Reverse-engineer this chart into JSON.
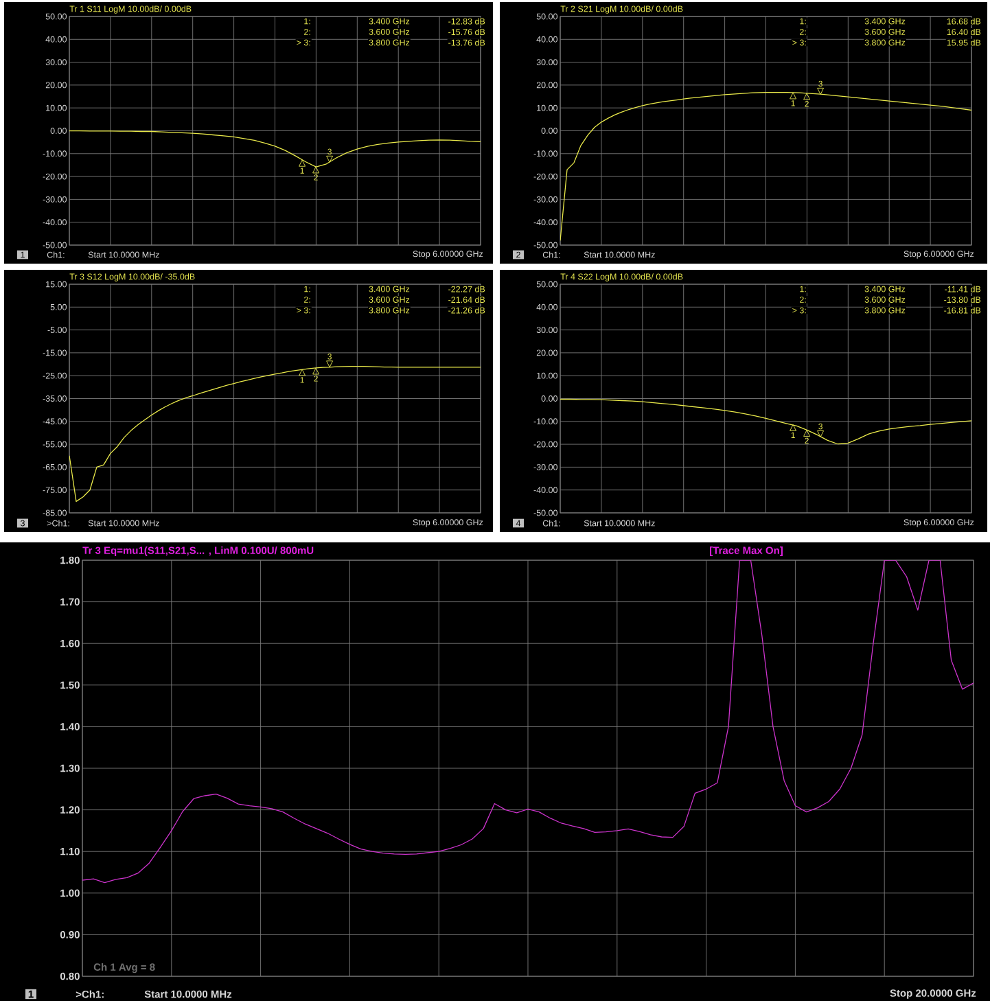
{
  "chart_data": [
    {
      "type": "line",
      "title": "Tr 1  S11 LogM 10.00dB/ 0.00dB",
      "categories": [
        null,
        null,
        null,
        null,
        null,
        null,
        null,
        null,
        null,
        null,
        null,
        null,
        null,
        null,
        null,
        null,
        null,
        null,
        null,
        null,
        null,
        null,
        null,
        null,
        null,
        null,
        null,
        null,
        null,
        null,
        null,
        null,
        null,
        null,
        null,
        null,
        null,
        null,
        null,
        null,
        null
      ],
      "series": [
        {
          "color": "#e8e84a",
          "values": [
            0,
            0,
            -0.1,
            -0.1,
            -0.1,
            -0.2,
            -0.2,
            -0.3,
            -0.3,
            -0.5,
            -0.7,
            -0.9,
            -1.1,
            -1.4,
            -1.8,
            -2.2,
            -2.7,
            -3.4,
            -4.2,
            -5.4,
            -6.7,
            -8.6,
            -11,
            -13.6,
            -15.8,
            -14.5,
            -11.8,
            -9.6,
            -8,
            -6.8,
            -6,
            -5.4,
            -4.9,
            -4.6,
            -4.3,
            -4.1,
            -4.0,
            -4.1,
            -4.3,
            -4.6,
            -4.8
          ]
        }
      ],
      "ylim": [
        -50,
        50
      ],
      "yticks": [
        {
          "value": 50,
          "label": "50.00"
        },
        {
          "value": 40,
          "label": "40.00"
        },
        {
          "value": 30,
          "label": "30.00"
        },
        {
          "value": 20,
          "label": "20.00"
        },
        {
          "value": 10,
          "label": "10.00"
        },
        {
          "value": 0,
          "label": "0.00"
        },
        {
          "value": -10,
          "label": "-10.00"
        },
        {
          "value": -20,
          "label": "-20.00"
        },
        {
          "value": -30,
          "label": "-30.00"
        },
        {
          "value": -40,
          "label": "-40.00"
        },
        {
          "value": -50,
          "label": "-50.00"
        }
      ],
      "grid": true,
      "tick_labels": "y",
      "annotations": [
        "1",
        "Ch1:",
        "Start 10.0000 MHz",
        "Stop 6.00000 GHz",
        "1:",
        "3.400 GHz",
        "-12.83 dB",
        "2:",
        "3.600 GHz",
        "-15.76 dB",
        "> 3:",
        "3.800 GHz",
        "-13.76 dB",
        {
          "text": "1",
          "y": -12.83
        },
        {
          "text": "2",
          "y": -15.76
        },
        {
          "text": "3",
          "y": -13.76
        }
      ]
    },
    {
      "type": "line",
      "title": "Tr 2  S21 LogM 10.00dB/ 0.00dB",
      "categories": [
        null,
        null,
        null,
        null,
        null,
        null,
        null,
        null,
        null,
        null,
        null,
        null,
        null,
        null,
        null,
        null,
        null,
        null,
        null,
        null,
        null,
        null,
        null,
        null,
        null,
        null,
        null,
        null,
        null,
        null,
        null,
        null,
        null,
        null,
        null,
        null,
        null,
        null,
        null,
        null,
        null,
        null,
        null,
        null,
        null,
        null,
        null,
        null,
        null,
        null,
        null,
        null,
        null,
        null,
        null,
        null,
        null,
        null,
        null,
        null,
        null
      ],
      "series": [
        {
          "color": "#e8e84a",
          "values": [
            -48,
            -17,
            -14,
            -6.5,
            -2,
            1.5,
            3.8,
            5.5,
            7,
            8.2,
            9.3,
            10.2,
            11,
            11.7,
            12.2,
            12.7,
            13.1,
            13.5,
            13.9,
            14.3,
            14.6,
            14.9,
            15.2,
            15.5,
            15.8,
            16.0,
            16.2,
            16.4,
            16.6,
            16.7,
            16.8,
            16.8,
            16.8,
            16.8,
            16.7,
            16.6,
            16.4,
            16.2,
            16.0,
            15.7,
            15.4,
            15.1,
            14.8,
            14.5,
            14.2,
            13.9,
            13.6,
            13.3,
            13.0,
            12.7,
            12.4,
            12.1,
            11.8,
            11.5,
            11.2,
            10.9,
            10.6,
            10.2,
            9.8,
            9.4,
            9.0
          ]
        }
      ],
      "ylim": [
        -50,
        50
      ],
      "yticks": [
        {
          "value": 50,
          "label": "50.00"
        },
        {
          "value": 40,
          "label": "40.00"
        },
        {
          "value": 30,
          "label": "30.00"
        },
        {
          "value": 20,
          "label": "20.00"
        },
        {
          "value": 10,
          "label": "10.00"
        },
        {
          "value": 0,
          "label": "0.00"
        },
        {
          "value": -10,
          "label": "-10.00"
        },
        {
          "value": -20,
          "label": "-20.00"
        },
        {
          "value": -30,
          "label": "-30.00"
        },
        {
          "value": -40,
          "label": "-40.00"
        },
        {
          "value": -50,
          "label": "-50.00"
        }
      ],
      "grid": true,
      "tick_labels": "y",
      "annotations": [
        "2",
        "Ch1:",
        "Start 10.0000 MHz",
        "Stop 6.00000 GHz",
        "1:",
        "3.400 GHz",
        "16.68 dB",
        "2:",
        "3.600 GHz",
        "16.40 dB",
        "> 3:",
        "3.800 GHz",
        "15.95 dB",
        {
          "text": "1",
          "y": 16.68
        },
        {
          "text": "2",
          "y": 16.4
        },
        {
          "text": "3",
          "y": 15.95
        }
      ]
    },
    {
      "type": "line",
      "title": "Tr 3  S12 LogM 10.00dB/ -35.0dB",
      "categories": [
        null,
        null,
        null,
        null,
        null,
        null,
        null,
        null,
        null,
        null,
        null,
        null,
        null,
        null,
        null,
        null,
        null,
        null,
        null,
        null,
        null,
        null,
        null,
        null,
        null,
        null,
        null,
        null,
        null,
        null,
        null,
        null,
        null,
        null,
        null,
        null,
        null,
        null,
        null,
        null,
        null,
        null,
        null,
        null,
        null,
        null,
        null,
        null,
        null,
        null,
        null,
        null,
        null,
        null,
        null,
        null,
        null,
        null,
        null,
        null,
        null
      ],
      "series": [
        {
          "color": "#e8e84a",
          "values": [
            -60,
            -80,
            -78,
            -75,
            -65,
            -64,
            -59,
            -56,
            -52,
            -49,
            -46.5,
            -44.3,
            -42.2,
            -40.3,
            -38.6,
            -37.1,
            -35.8,
            -34.7,
            -33.8,
            -32.8,
            -31.9,
            -31.0,
            -30.1,
            -29.2,
            -28.4,
            -27.6,
            -26.9,
            -26.2,
            -25.5,
            -24.9,
            -24.3,
            -23.8,
            -23.2,
            -22.7,
            -22.3,
            -21.9,
            -21.6,
            -21.4,
            -21.3,
            -21.1,
            -21.0,
            -20.9,
            -20.9,
            -20.9,
            -21.0,
            -21.1,
            -21.2,
            -21.2,
            -21.3,
            -21.3,
            -21.3,
            -21.3,
            -21.3,
            -21.3,
            -21.3,
            -21.3,
            -21.3,
            -21.3,
            -21.3,
            -21.3,
            -21.3
          ]
        }
      ],
      "ylim": [
        -85,
        15
      ],
      "yticks": [
        {
          "value": 15,
          "label": "15.00"
        },
        {
          "value": 5,
          "label": "5.00"
        },
        {
          "value": -5,
          "label": "-5.00"
        },
        {
          "value": -15,
          "label": "-15.00"
        },
        {
          "value": -25,
          "label": "-25.00"
        },
        {
          "value": -35,
          "label": "-35.00"
        },
        {
          "value": -45,
          "label": "-45.00"
        },
        {
          "value": -55,
          "label": "-55.00"
        },
        {
          "value": -65,
          "label": "-65.00"
        },
        {
          "value": -75,
          "label": "-75.00"
        },
        {
          "value": -85,
          "label": "-85.00"
        }
      ],
      "grid": true,
      "tick_labels": "y",
      "annotations": [
        "3",
        ">Ch1:",
        "Start 10.0000 MHz",
        "Stop 6.00000 GHz",
        "1:",
        "3.400 GHz",
        "-22.27 dB",
        "2:",
        "3.600 GHz",
        "-21.64 dB",
        "> 3:",
        "3.800 GHz",
        "-21.26 dB",
        {
          "text": "1",
          "y": -22.27
        },
        {
          "text": "2",
          "y": -21.64
        },
        {
          "text": "3",
          "y": -21.26
        }
      ]
    },
    {
      "type": "line",
      "title": "Tr 4  S22 LogM 10.00dB/ 0.00dB",
      "categories": [
        null,
        null,
        null,
        null,
        null,
        null,
        null,
        null,
        null,
        null,
        null,
        null,
        null,
        null,
        null,
        null,
        null,
        null,
        null,
        null,
        null,
        null,
        null,
        null,
        null,
        null,
        null,
        null,
        null,
        null,
        null,
        null,
        null,
        null,
        null,
        null,
        null,
        null,
        null,
        null,
        null
      ],
      "series": [
        {
          "color": "#e8e84a",
          "values": [
            -0.3,
            -0.3,
            -0.4,
            -0.4,
            -0.5,
            -0.7,
            -0.9,
            -1.1,
            -1.4,
            -1.8,
            -2.2,
            -2.6,
            -3.1,
            -3.6,
            -4.1,
            -4.6,
            -5.2,
            -5.9,
            -6.7,
            -7.6,
            -8.7,
            -9.8,
            -10.9,
            -12.0,
            -13.8,
            -15.9,
            -18.3,
            -19.9,
            -19.5,
            -17.6,
            -15.5,
            -14.2,
            -13.3,
            -12.7,
            -12.2,
            -11.8,
            -11.3,
            -10.9,
            -10.5,
            -10.1,
            -9.7
          ]
        }
      ],
      "ylim": [
        -50,
        50
      ],
      "yticks": [
        {
          "value": 50,
          "label": "50.00"
        },
        {
          "value": 40,
          "label": "40.00"
        },
        {
          "value": 30,
          "label": "30.00"
        },
        {
          "value": 20,
          "label": "20.00"
        },
        {
          "value": 10,
          "label": "10.00"
        },
        {
          "value": 0,
          "label": "0.00"
        },
        {
          "value": -10,
          "label": "-10.00"
        },
        {
          "value": -20,
          "label": "-20.00"
        },
        {
          "value": -30,
          "label": "-30.00"
        },
        {
          "value": -40,
          "label": "-40.00"
        },
        {
          "value": -50,
          "label": "-50.00"
        }
      ],
      "grid": true,
      "tick_labels": "y",
      "annotations": [
        "4",
        "Ch1:",
        "Start 10.0000 MHz",
        "Stop 6.00000 GHz",
        "1:",
        "3.400 GHz",
        "-11.41 dB",
        "2:",
        "3.600 GHz",
        "-13.80 dB",
        "> 3:",
        "3.800 GHz",
        "-16.81 dB",
        {
          "text": "1",
          "y": -11.41
        },
        {
          "text": "2",
          "y": -13.8
        },
        {
          "text": "3",
          "y": -16.81
        }
      ]
    },
    {
      "type": "line",
      "title": "Tr 3  Eq=mu1(S11,S21,S... ,  LinM 0.100U/  800mU",
      "categories": [
        null,
        null,
        null,
        null,
        null,
        null,
        null,
        null,
        null,
        null,
        null,
        null,
        null,
        null,
        null,
        null,
        null,
        null,
        null,
        null,
        null,
        null,
        null,
        null,
        null,
        null,
        null,
        null,
        null,
        null,
        null,
        null,
        null,
        null,
        null,
        null,
        null,
        null,
        null,
        null,
        null,
        null,
        null,
        null,
        null,
        null,
        null,
        null,
        null,
        null,
        null,
        null,
        null,
        null,
        null,
        null,
        null,
        null,
        null,
        null,
        null,
        null,
        null,
        null,
        null,
        null,
        null,
        null,
        null,
        null,
        null,
        null,
        null,
        null,
        null,
        null,
        null,
        null,
        null,
        null,
        null
      ],
      "series": [
        {
          "color": "#cc33cc",
          "values": [
            1.031,
            1.034,
            1.025,
            1.033,
            1.037,
            1.048,
            1.072,
            1.11,
            1.15,
            1.196,
            1.227,
            1.234,
            1.238,
            1.228,
            1.214,
            1.21,
            1.207,
            1.203,
            1.195,
            1.18,
            1.166,
            1.155,
            1.144,
            1.13,
            1.117,
            1.106,
            1.1,
            1.096,
            1.094,
            1.093,
            1.094,
            1.097,
            1.1,
            1.107,
            1.116,
            1.13,
            1.155,
            1.215,
            1.2,
            1.193,
            1.202,
            1.195,
            1.18,
            1.168,
            1.161,
            1.155,
            1.146,
            1.147,
            1.15,
            1.154,
            1.148,
            1.14,
            1.135,
            1.134,
            1.16,
            1.24,
            1.25,
            1.265,
            1.4,
            1.8,
            1.8,
            1.62,
            1.4,
            1.27,
            1.21,
            1.195,
            1.205,
            1.22,
            1.25,
            1.3,
            1.38,
            1.6,
            1.8,
            1.8,
            1.76,
            1.68,
            1.8,
            1.8,
            1.56,
            1.49,
            1.505
          ]
        }
      ],
      "ylim": [
        0.8,
        1.8
      ],
      "yticks": [
        {
          "value": 1.8,
          "label": "1.80"
        },
        {
          "value": 1.7,
          "label": "1.70"
        },
        {
          "value": 1.6,
          "label": "1.60"
        },
        {
          "value": 1.5,
          "label": "1.50"
        },
        {
          "value": 1.4,
          "label": "1.40"
        },
        {
          "value": 1.3,
          "label": "1.30"
        },
        {
          "value": 1.2,
          "label": "1.20"
        },
        {
          "value": 1.1,
          "label": "1.10"
        },
        {
          "value": 1.0,
          "label": "1.00"
        },
        {
          "value": 0.9,
          "label": "0.90"
        },
        {
          "value": 0.8,
          "label": "0.80"
        }
      ],
      "grid": true,
      "tick_labels": "y",
      "annotations": [
        "1",
        ">Ch1:",
        "Start  10.0000 MHz",
        "Stop  20.0000 GHz",
        "[Trace Max On]",
        "Ch 1 Avg = 8"
      ]
    }
  ]
}
